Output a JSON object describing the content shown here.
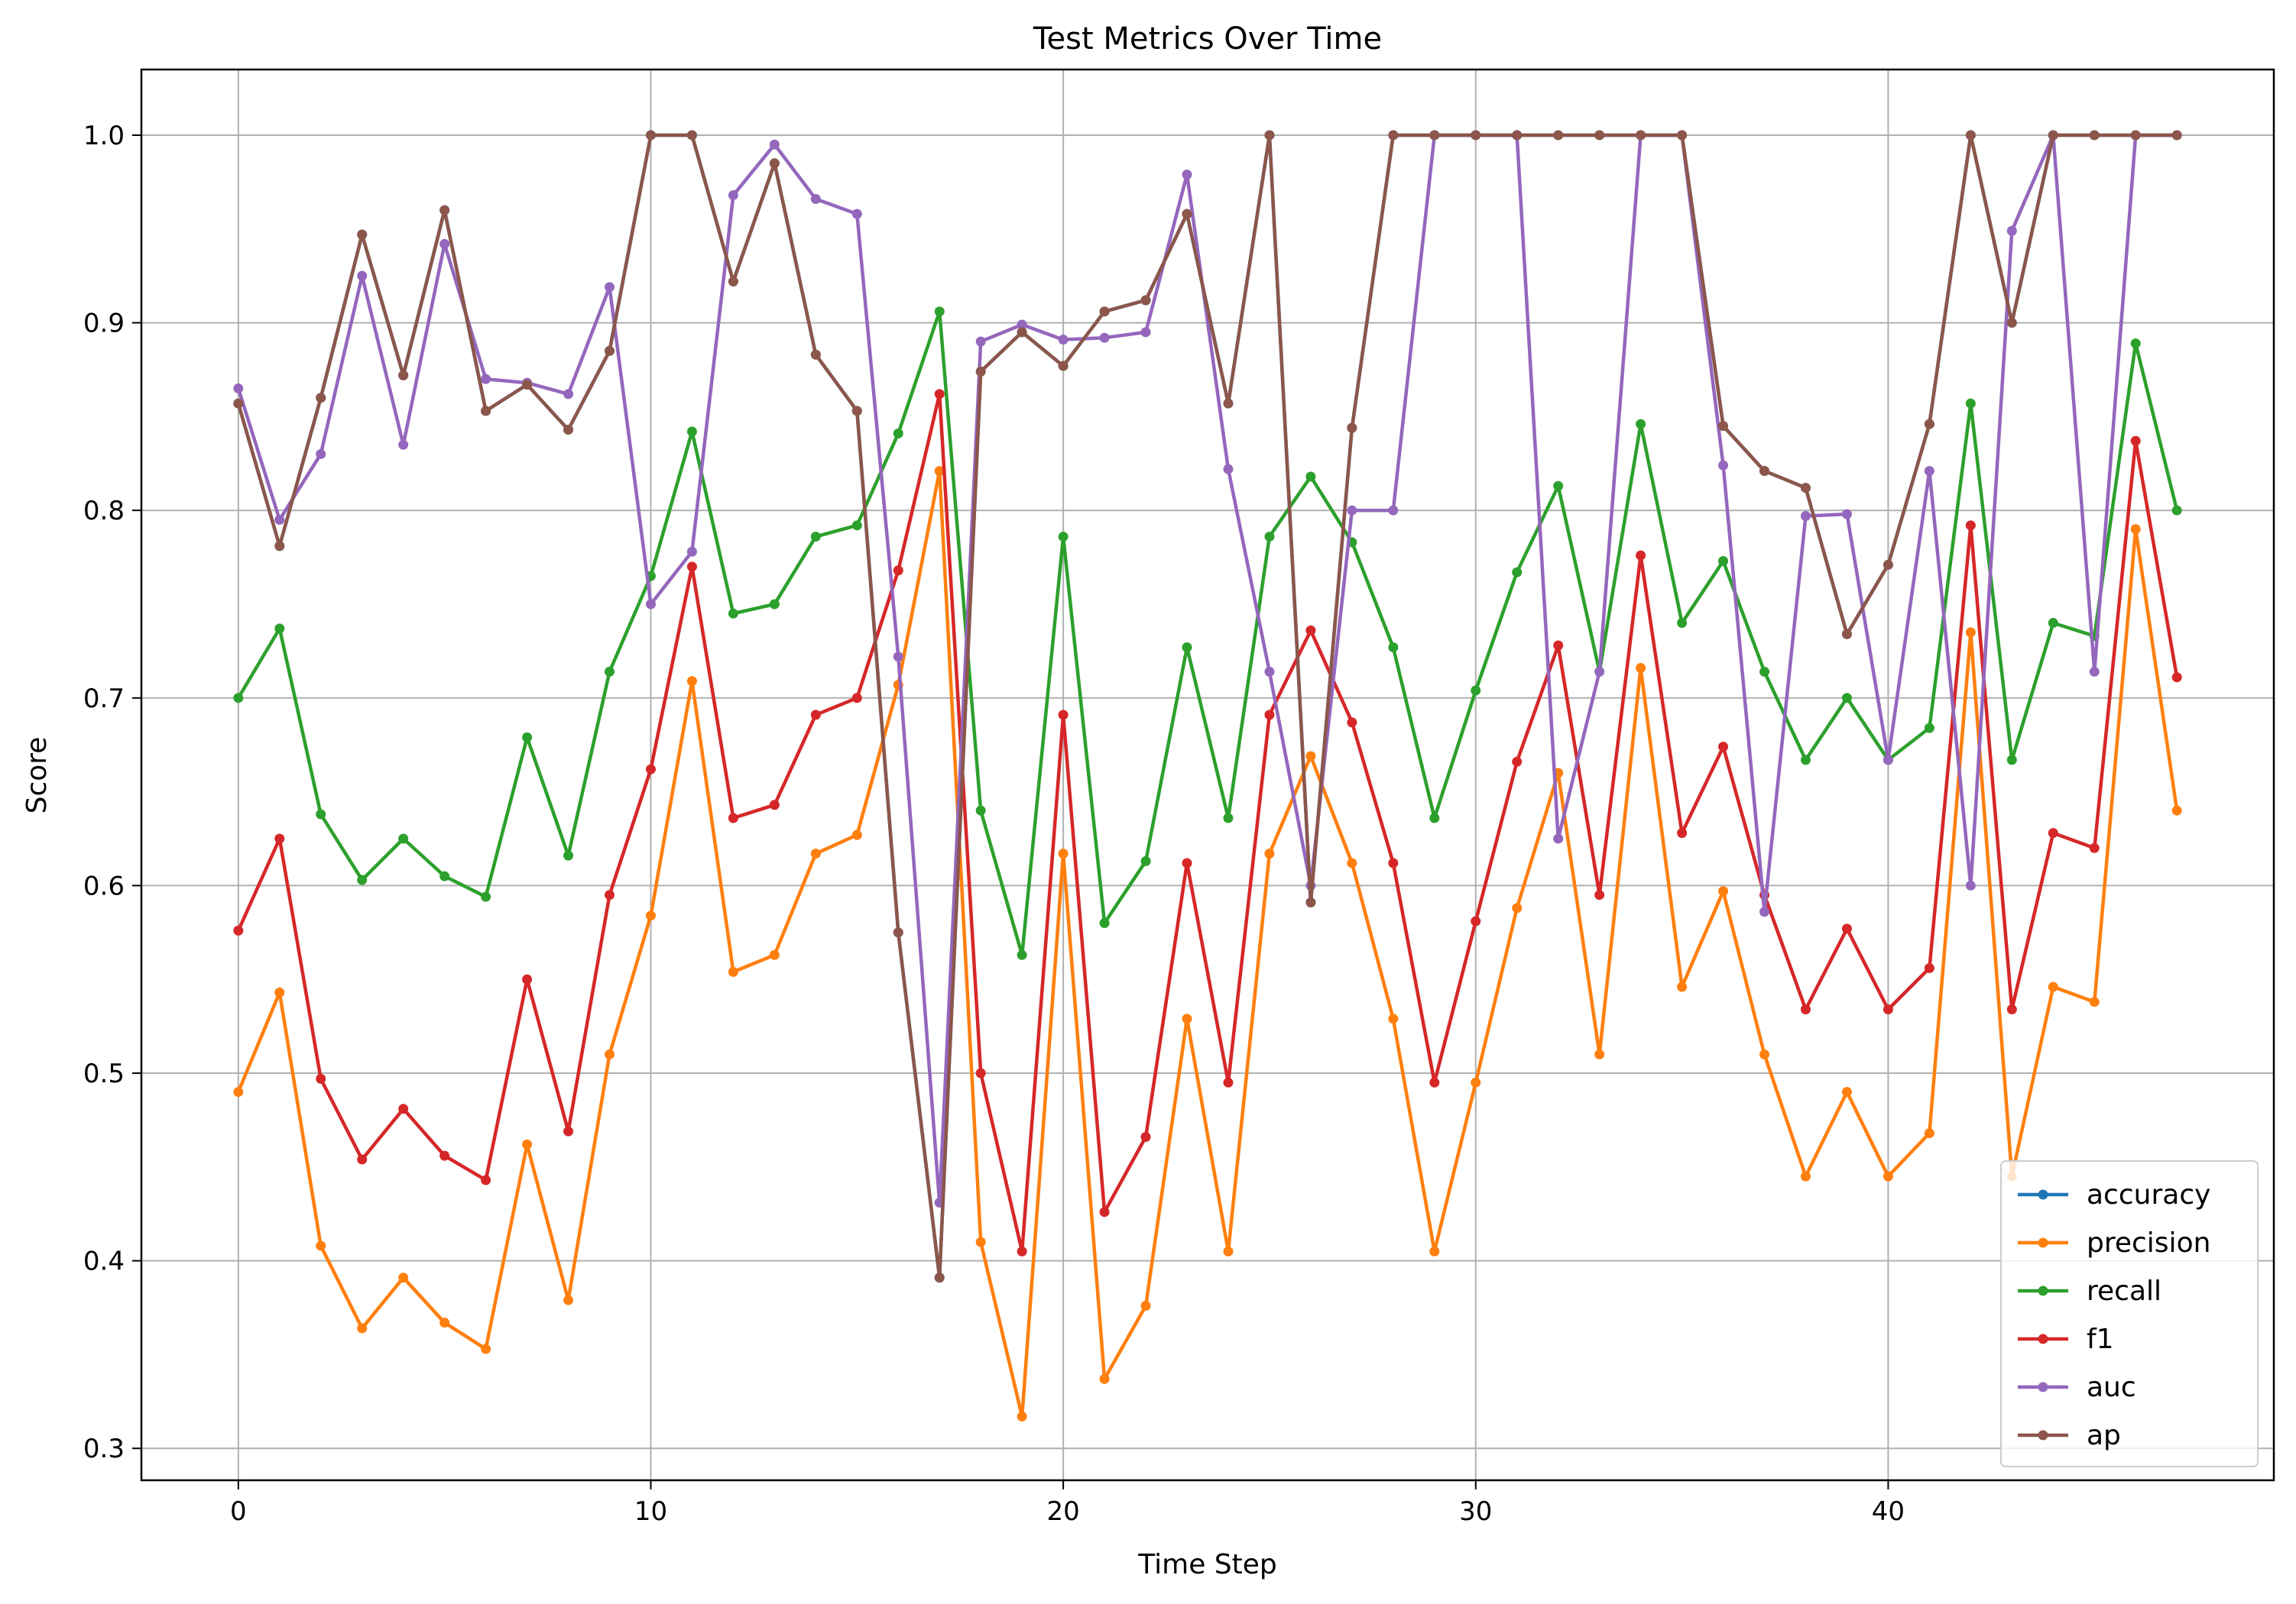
{
  "chart_data": {
    "type": "line",
    "title": "Test Metrics Over Time",
    "xlabel": "Time Step",
    "ylabel": "Score",
    "xlim": [
      -2.35,
      49.35
    ],
    "ylim": [
      0.283,
      1.035
    ],
    "xticks": [
      0,
      10,
      20,
      30,
      40
    ],
    "xtick_labels": [
      "0",
      "10",
      "20",
      "30",
      "40"
    ],
    "yticks": [
      0.3,
      0.4,
      0.5,
      0.6,
      0.7,
      0.8,
      0.9,
      1.0
    ],
    "ytick_labels": [
      "0.3",
      "0.4",
      "0.5",
      "0.6",
      "0.7",
      "0.8",
      "0.9",
      "1.0"
    ],
    "grid": true,
    "legend_position": "lower-right",
    "x": [
      0,
      1,
      2,
      3,
      4,
      5,
      6,
      7,
      8,
      9,
      10,
      11,
      12,
      13,
      14,
      15,
      16,
      17,
      18,
      19,
      20,
      21,
      22,
      23,
      24,
      25,
      26,
      27,
      28,
      29,
      30,
      31,
      32,
      33,
      34,
      35,
      36,
      37,
      38,
      39,
      40,
      41,
      42,
      43,
      44,
      45,
      46,
      47
    ],
    "series": [
      {
        "name": "accuracy",
        "color": "#1f77b4",
        "values": [
          0.857,
          0.781,
          0.86,
          0.947,
          0.872,
          0.96,
          0.853,
          0.867,
          0.843,
          0.885,
          1.0,
          1.0,
          0.922,
          0.985,
          0.883,
          0.853,
          0.575,
          0.391,
          0.874,
          0.895,
          0.877,
          0.906,
          0.912,
          0.958,
          0.857,
          1.0,
          0.591,
          0.844,
          1.0,
          1.0,
          1.0,
          1.0,
          1.0,
          1.0,
          1.0,
          1.0,
          0.845,
          0.821,
          0.812,
          0.734,
          0.771,
          0.846,
          1.0,
          0.9,
          1.0,
          1.0,
          1.0,
          1.0
        ]
      },
      {
        "name": "precision",
        "color": "#ff7f0e",
        "values": [
          0.49,
          0.543,
          0.408,
          0.364,
          0.391,
          0.367,
          0.353,
          0.462,
          0.379,
          0.51,
          0.584,
          0.709,
          0.554,
          0.563,
          0.617,
          0.627,
          0.707,
          0.821,
          0.41,
          0.317,
          0.617,
          0.337,
          0.376,
          0.529,
          0.405,
          0.617,
          0.669,
          0.612,
          0.529,
          0.405,
          0.495,
          0.588,
          0.66,
          0.51,
          0.716,
          0.546,
          0.597,
          0.51,
          0.445,
          0.49,
          0.445,
          0.468,
          0.735,
          0.445,
          0.546,
          0.538,
          0.79,
          0.64
        ]
      },
      {
        "name": "recall",
        "color": "#2ca02c",
        "values": [
          0.7,
          0.737,
          0.638,
          0.603,
          0.625,
          0.605,
          0.594,
          0.679,
          0.616,
          0.714,
          0.765,
          0.842,
          0.745,
          0.75,
          0.786,
          0.792,
          0.841,
          0.906,
          0.64,
          0.563,
          0.786,
          0.58,
          0.613,
          0.727,
          0.636,
          0.786,
          0.818,
          0.783,
          0.727,
          0.636,
          0.704,
          0.767,
          0.813,
          0.714,
          0.846,
          0.74,
          0.773,
          0.714,
          0.667,
          0.7,
          0.667,
          0.684,
          0.857,
          0.667,
          0.74,
          0.733,
          0.889,
          0.8
        ]
      },
      {
        "name": "f1",
        "color": "#d62728",
        "values": [
          0.576,
          0.625,
          0.497,
          0.454,
          0.481,
          0.456,
          0.443,
          0.55,
          0.469,
          0.595,
          0.662,
          0.77,
          0.636,
          0.643,
          0.691,
          0.7,
          0.768,
          0.862,
          0.5,
          0.405,
          0.691,
          0.426,
          0.466,
          0.612,
          0.495,
          0.691,
          0.736,
          0.687,
          0.612,
          0.495,
          0.581,
          0.666,
          0.728,
          0.595,
          0.776,
          0.628,
          0.674,
          0.595,
          0.534,
          0.577,
          0.534,
          0.556,
          0.792,
          0.534,
          0.628,
          0.62,
          0.837,
          0.711
        ]
      },
      {
        "name": "auc",
        "color": "#9467bd",
        "values": [
          0.865,
          0.795,
          0.83,
          0.925,
          0.835,
          0.942,
          0.87,
          0.868,
          0.862,
          0.919,
          0.75,
          0.778,
          0.968,
          0.995,
          0.966,
          0.958,
          0.722,
          0.431,
          0.89,
          0.899,
          0.891,
          0.892,
          0.895,
          0.979,
          0.822,
          0.714,
          0.6,
          0.8,
          0.8,
          1.0,
          1.0,
          1.0,
          0.625,
          0.714,
          1.0,
          1.0,
          0.824,
          0.586,
          0.797,
          0.798,
          0.667,
          0.821,
          0.6,
          0.949,
          1.0,
          0.714,
          1.0,
          1.0
        ]
      },
      {
        "name": "ap",
        "color": "#8c564b",
        "values": [
          0.857,
          0.781,
          0.86,
          0.947,
          0.872,
          0.96,
          0.853,
          0.867,
          0.843,
          0.885,
          1.0,
          1.0,
          0.922,
          0.985,
          0.883,
          0.853,
          0.575,
          0.391,
          0.874,
          0.895,
          0.877,
          0.906,
          0.912,
          0.958,
          0.857,
          1.0,
          0.591,
          0.844,
          1.0,
          1.0,
          1.0,
          1.0,
          1.0,
          1.0,
          1.0,
          1.0,
          0.845,
          0.821,
          0.812,
          0.734,
          0.771,
          0.846,
          1.0,
          0.9,
          1.0,
          1.0,
          1.0,
          1.0
        ]
      }
    ]
  }
}
